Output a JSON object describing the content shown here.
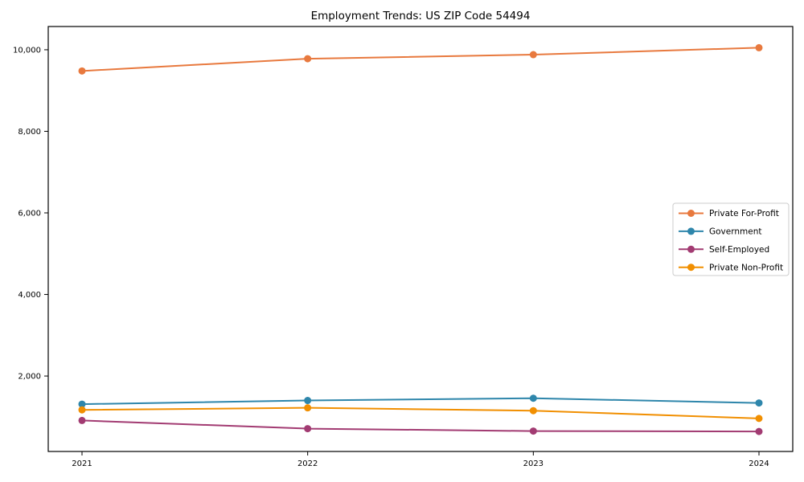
{
  "chart_data": {
    "type": "line",
    "title": "Employment Trends: US ZIP Code 54494",
    "categories": [
      "2021",
      "2022",
      "2023",
      "2024"
    ],
    "series": [
      {
        "name": "Private For-Profit",
        "color": "#e8793e",
        "values": [
          9480,
          9780,
          9880,
          10050
        ]
      },
      {
        "name": "Government",
        "color": "#2e86ab",
        "values": [
          1310,
          1400,
          1455,
          1340
        ]
      },
      {
        "name": "Self-Employed",
        "color": "#a23b72",
        "values": [
          910,
          710,
          650,
          640
        ]
      },
      {
        "name": "Private Non-Profit",
        "color": "#f18f01",
        "values": [
          1170,
          1220,
          1150,
          960
        ]
      }
    ],
    "yticks": [
      2000,
      4000,
      6000,
      8000,
      10000
    ],
    "ytick_labels": [
      "2,000",
      "4,000",
      "6,000",
      "8,000",
      "10,000"
    ],
    "ylim": [
      150,
      10570
    ],
    "xlabel": "",
    "ylabel": "",
    "grid": false,
    "marker": "circle",
    "legend_position": "center-right",
    "text_color": "#000000",
    "spine_color": "#000000",
    "legend_border_color": "#cccccc"
  }
}
